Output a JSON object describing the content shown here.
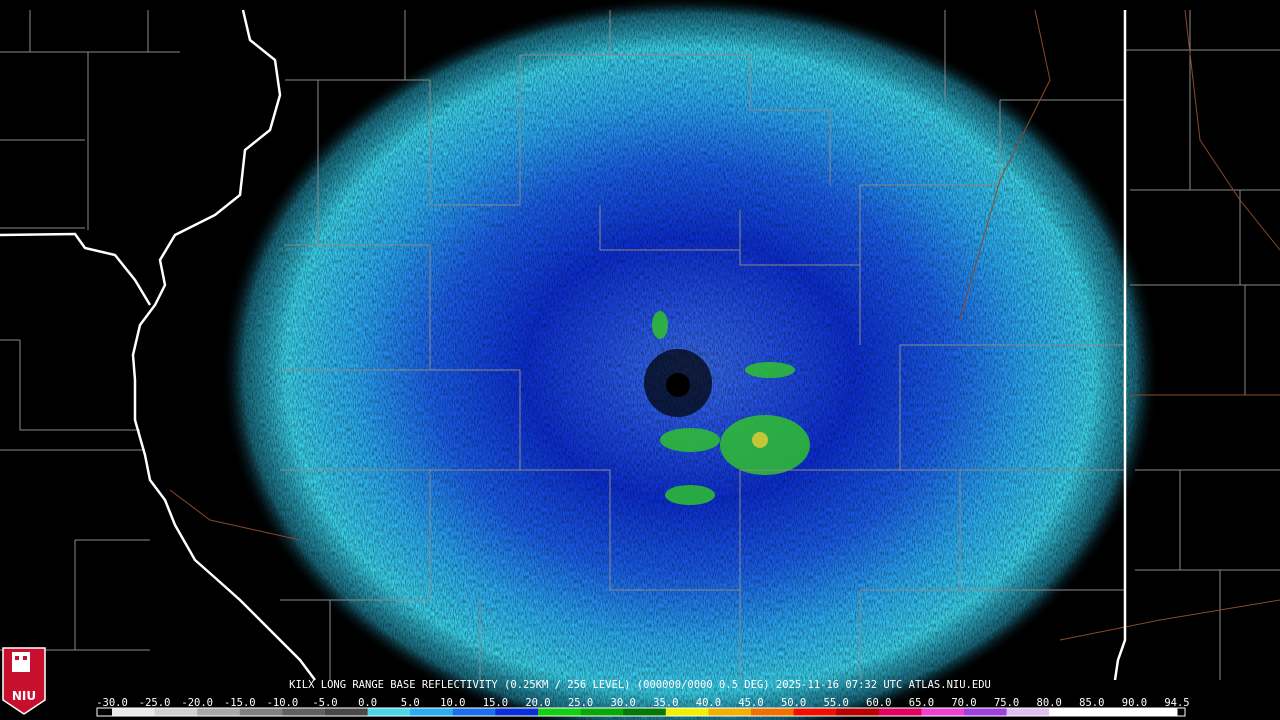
{
  "header": {
    "caption": "KILX LONG RANGE BASE REFLECTIVITY (0.25KM / 256 LEVEL) (000000/0000 0.5 DEG) 2025-11-16 07:32 UTC  ATLAS.NIU.EDU"
  },
  "logo": {
    "text": "NIU"
  },
  "colorbar": {
    "labels": [
      "-30.0",
      "-25.0",
      "-20.0",
      "-15.0",
      "-10.0",
      "-5.0",
      "0.0",
      "5.0",
      "10.0",
      "15.0",
      "20.0",
      "25.0",
      "30.0",
      "35.0",
      "40.0",
      "45.0",
      "50.0",
      "55.0",
      "60.0",
      "65.0",
      "70.0",
      "75.0",
      "80.0",
      "85.0",
      "90.0",
      "94.5"
    ],
    "colors": [
      "#e8e8e8",
      "#d0d0d0",
      "#a8a8a8",
      "#808080",
      "#606060",
      "#484848",
      "#4ad6e6",
      "#2aaef0",
      "#1a6ef0",
      "#0a2ed8",
      "#10d010",
      "#08a808",
      "#067806",
      "#f0f000",
      "#f0b000",
      "#f07000",
      "#f01000",
      "#b80000",
      "#e00060",
      "#f040d0",
      "#a040e0",
      "#e0c0f0",
      "#ffffff",
      "#ffffff",
      "#ffffff"
    ]
  }
}
